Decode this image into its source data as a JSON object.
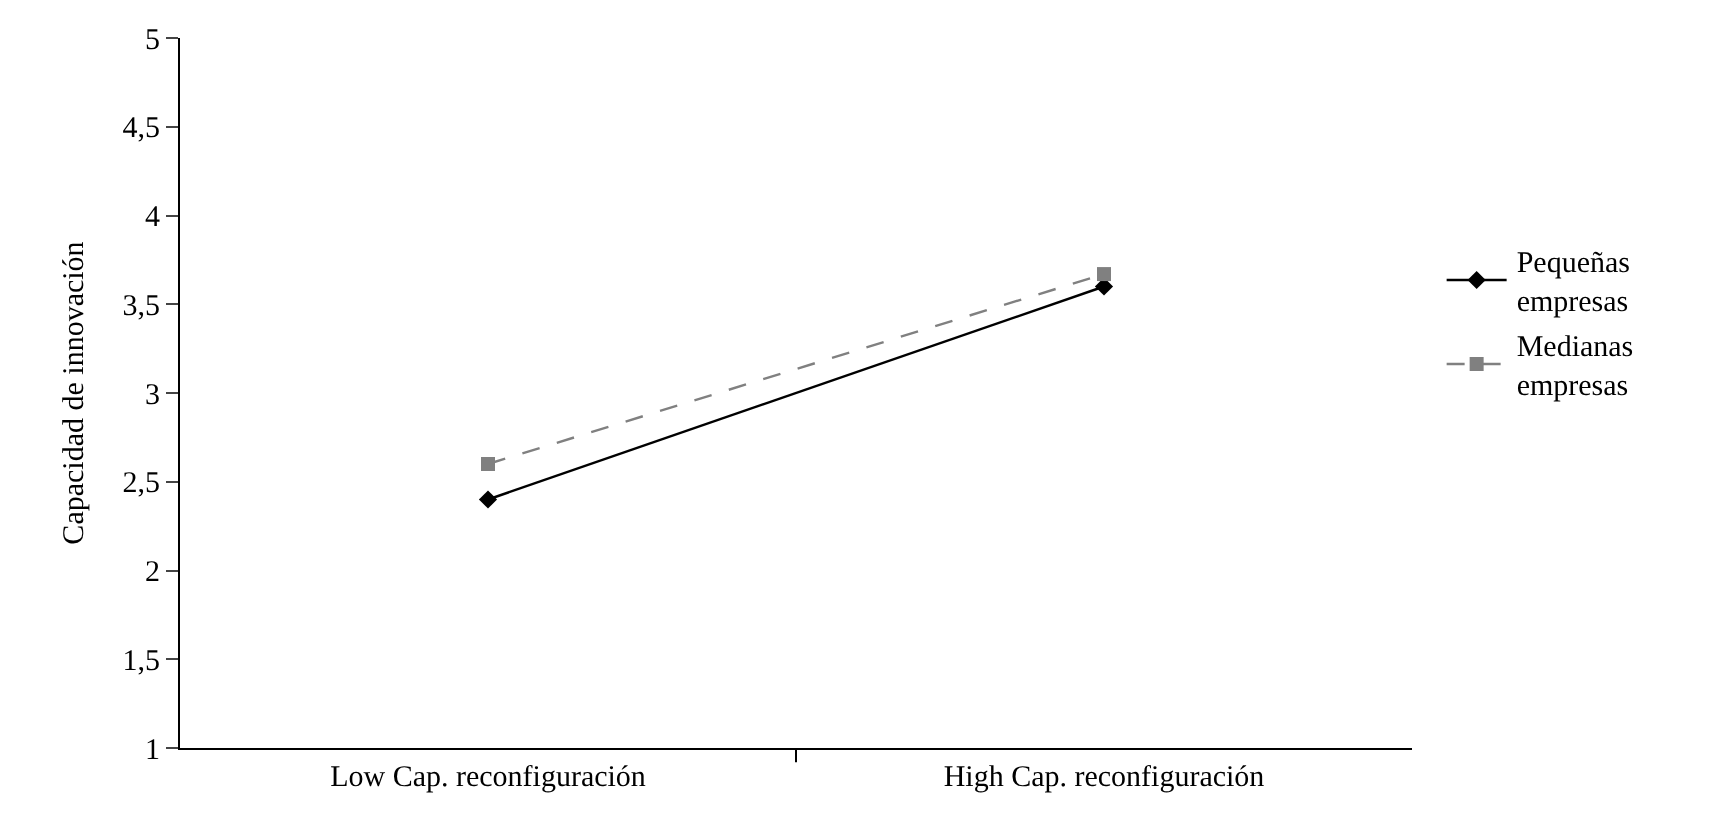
{
  "chart_data": {
    "type": "line",
    "ylabel": "Capacidad de innovación",
    "categories": [
      "Low Cap. reconfiguración",
      "High Cap. reconfiguración"
    ],
    "ylim": [
      1,
      5
    ],
    "yticks": [
      1,
      {
        "value": 1.5,
        "label": "1,5"
      },
      2,
      {
        "value": 2.5,
        "label": "2,5"
      },
      3,
      {
        "value": 3.5,
        "label": "3,5"
      },
      4,
      {
        "value": 4.5,
        "label": "4,5"
      },
      5
    ],
    "legend": "right",
    "series": [
      {
        "name": "Pequeñas empresas",
        "color": "#000000",
        "values": [
          2.4,
          3.6
        ],
        "marker": "diamond",
        "line_style": "solid"
      },
      {
        "name": "Medianas empresas",
        "color": "#808080",
        "values": [
          2.6,
          3.67
        ],
        "marker": "square",
        "line_style": "dashed"
      }
    ]
  }
}
